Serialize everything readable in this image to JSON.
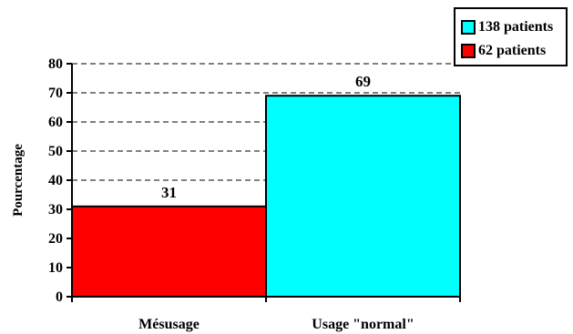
{
  "chart_data": {
    "type": "bar",
    "categories": [
      "Mésusage",
      "Usage \"normal\""
    ],
    "values": [
      31,
      69
    ],
    "data_labels": [
      "31",
      "69"
    ],
    "colors": [
      "#ff0000",
      "#00ffff"
    ],
    "title": "",
    "xlabel": "",
    "ylabel": "Pourcentage",
    "ylim": [
      0,
      80
    ],
    "yticks": [
      0,
      10,
      20,
      30,
      40,
      50,
      60,
      70,
      80
    ],
    "ytick_labels": [
      "0",
      "10",
      "20",
      "30",
      "40",
      "50",
      "60",
      "70",
      "80"
    ],
    "grid": true,
    "grid_style": "dashed",
    "legend_position": "top-right",
    "legend": [
      {
        "label": "138 patients",
        "color": "#00ffff"
      },
      {
        "label": "62 patients",
        "color": "#ff0000"
      }
    ]
  }
}
